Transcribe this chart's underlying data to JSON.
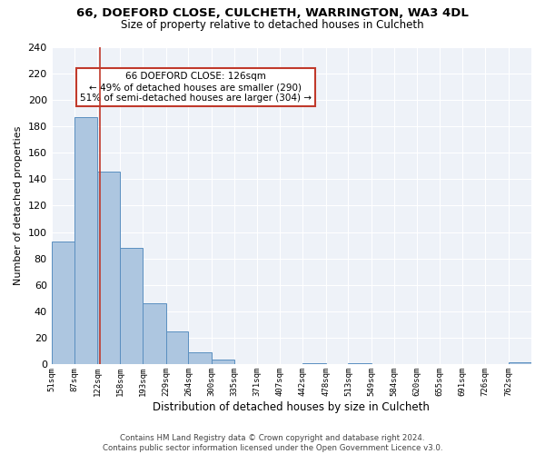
{
  "title": "66, DOEFORD CLOSE, CULCHETH, WARRINGTON, WA3 4DL",
  "subtitle": "Size of property relative to detached houses in Culcheth",
  "xlabel": "Distribution of detached houses by size in Culcheth",
  "ylabel": "Number of detached properties",
  "bin_labels": [
    "51sqm",
    "87sqm",
    "122sqm",
    "158sqm",
    "193sqm",
    "229sqm",
    "264sqm",
    "300sqm",
    "335sqm",
    "371sqm",
    "407sqm",
    "442sqm",
    "478sqm",
    "513sqm",
    "549sqm",
    "584sqm",
    "620sqm",
    "655sqm",
    "691sqm",
    "726sqm",
    "762sqm"
  ],
  "bin_edges": [
    51,
    87,
    122,
    158,
    193,
    229,
    264,
    300,
    335,
    371,
    407,
    442,
    478,
    513,
    549,
    584,
    620,
    655,
    691,
    726,
    762
  ],
  "bar_heights": [
    93,
    187,
    146,
    88,
    46,
    25,
    9,
    4,
    0,
    0,
    0,
    1,
    0,
    1,
    0,
    0,
    0,
    0,
    0,
    0,
    2
  ],
  "bar_color": "#adc6e0",
  "bar_edge_color": "#5a8fc0",
  "property_line_x": 126,
  "ylim": [
    0,
    240
  ],
  "yticks": [
    0,
    20,
    40,
    60,
    80,
    100,
    120,
    140,
    160,
    180,
    200,
    220,
    240
  ],
  "annotation_box_text_line1": "66 DOEFORD CLOSE: 126sqm",
  "annotation_box_text_line2": "← 49% of detached houses are smaller (290)",
  "annotation_box_text_line3": "51% of semi-detached houses are larger (304) →",
  "annotation_box_edge_color": "#c0392b",
  "footer_line1": "Contains HM Land Registry data © Crown copyright and database right 2024.",
  "footer_line2": "Contains public sector information licensed under the Open Government Licence v3.0.",
  "bg_color": "#eef2f8",
  "grid_color": "#ffffff",
  "fig_bg_color": "#ffffff"
}
